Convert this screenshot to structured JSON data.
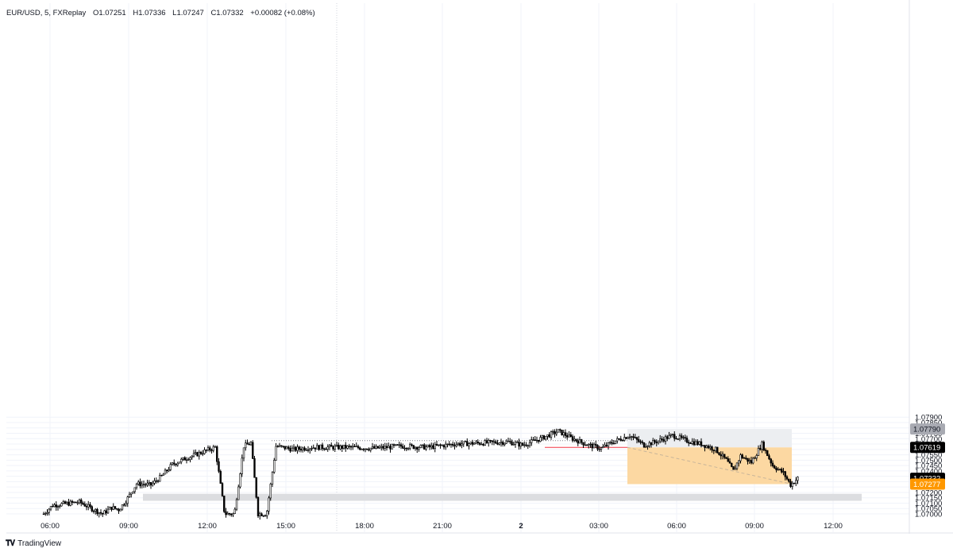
{
  "header": {
    "symbol": "EUR/USD, 5, FXReplay",
    "open": "O1.07251",
    "high": "H1.07336",
    "low": "L1.07247",
    "close": "C1.07332",
    "change": "+0.00082 (+0.08%)"
  },
  "footer": {
    "brand": "TradingView",
    "logo_icon": "tradingview-logo-icon"
  },
  "colors": {
    "candle": "#000000",
    "grid": "#f0f3fa",
    "crosshair": "#d1d4dc",
    "zone": "#dcdde0",
    "target": "#eceef1",
    "stop": "#fcd8a2",
    "entry_line": "#f23645",
    "badge_target": "#a8aab2",
    "badge_price": "#000000",
    "badge_stop": "#ff9800"
  },
  "chart_data": {
    "type": "candlestick",
    "symbol": "EUR/USD",
    "interval": "5",
    "y_ticks": [
      "1.07000",
      "1.07050",
      "1.07100",
      "1.07150",
      "1.07200",
      "1.07250",
      "1.07300",
      "1.07350",
      "1.07400",
      "1.07450",
      "1.07500",
      "1.07550",
      "1.07600",
      "1.07650",
      "1.07700",
      "1.07750",
      "1.07800",
      "1.07850",
      "1.07900"
    ],
    "ylim": [
      1.0699,
      1.0795
    ],
    "x_ticks": [
      "06:00",
      "09:00",
      "12:00",
      "15:00",
      "18:00",
      "21:00",
      "2",
      "03:00",
      "06:00",
      "09:00",
      "12:00"
    ],
    "price_badges": [
      {
        "label": "1.07790",
        "value": 1.0779,
        "kind": "target"
      },
      {
        "label": "1.07619",
        "value": 1.07619,
        "kind": "price"
      },
      {
        "label": "1.07332",
        "value": 1.07332,
        "kind": "price"
      },
      {
        "label": "1.07277",
        "value": 1.07277,
        "kind": "stop"
      }
    ],
    "approx_close_path": [
      [
        0,
        1.07
      ],
      [
        5,
        1.0708
      ],
      [
        20,
        1.0711
      ],
      [
        28,
        1.0704
      ],
      [
        33,
        1.07
      ],
      [
        38,
        1.0706
      ],
      [
        42,
        1.0704
      ],
      [
        46,
        1.0712
      ],
      [
        52,
        1.0728
      ],
      [
        60,
        1.0727
      ],
      [
        66,
        1.0735
      ],
      [
        72,
        1.0746
      ],
      [
        80,
        1.0752
      ],
      [
        88,
        1.0757
      ],
      [
        96,
        1.0762
      ],
      [
        104,
        1.0668
      ],
      [
        112,
        1.0763
      ],
      [
        116,
        1.0766
      ],
      [
        122,
        1.0667
      ],
      [
        130,
        1.0763
      ],
      [
        140,
        1.076
      ],
      [
        150,
        1.0762
      ],
      [
        170,
        1.0762
      ],
      [
        185,
        1.0761
      ],
      [
        200,
        1.0763
      ],
      [
        215,
        1.0762
      ],
      [
        230,
        1.0765
      ],
      [
        245,
        1.0766
      ],
      [
        260,
        1.0767
      ],
      [
        268,
        1.0764
      ],
      [
        278,
        1.077
      ],
      [
        288,
        1.0777
      ],
      [
        296,
        1.077
      ],
      [
        305,
        1.0764
      ],
      [
        312,
        1.0761
      ],
      [
        320,
        1.0768
      ],
      [
        328,
        1.0773
      ],
      [
        336,
        1.0764
      ],
      [
        344,
        1.0768
      ],
      [
        352,
        1.0773
      ],
      [
        360,
        1.0768
      ],
      [
        368,
        1.0765
      ],
      [
        376,
        1.076
      ],
      [
        382,
        1.075
      ],
      [
        386,
        1.074
      ],
      [
        390,
        1.0754
      ],
      [
        396,
        1.0748
      ],
      [
        402,
        1.0765
      ],
      [
        408,
        1.0745
      ],
      [
        414,
        1.0738
      ],
      [
        418,
        1.0727
      ],
      [
        422,
        1.0733
      ]
    ],
    "annotations": [
      {
        "type": "zone",
        "label": "",
        "y_top": 1.07187,
        "y_bottom": 1.07122
      },
      {
        "type": "position",
        "entry": 1.07619,
        "target": 1.0779,
        "stop": 1.07277
      },
      {
        "type": "level",
        "value": 1.07682,
        "style": "dotted"
      },
      {
        "type": "level",
        "value": 1.07619,
        "style": "solid-red-short"
      }
    ]
  }
}
